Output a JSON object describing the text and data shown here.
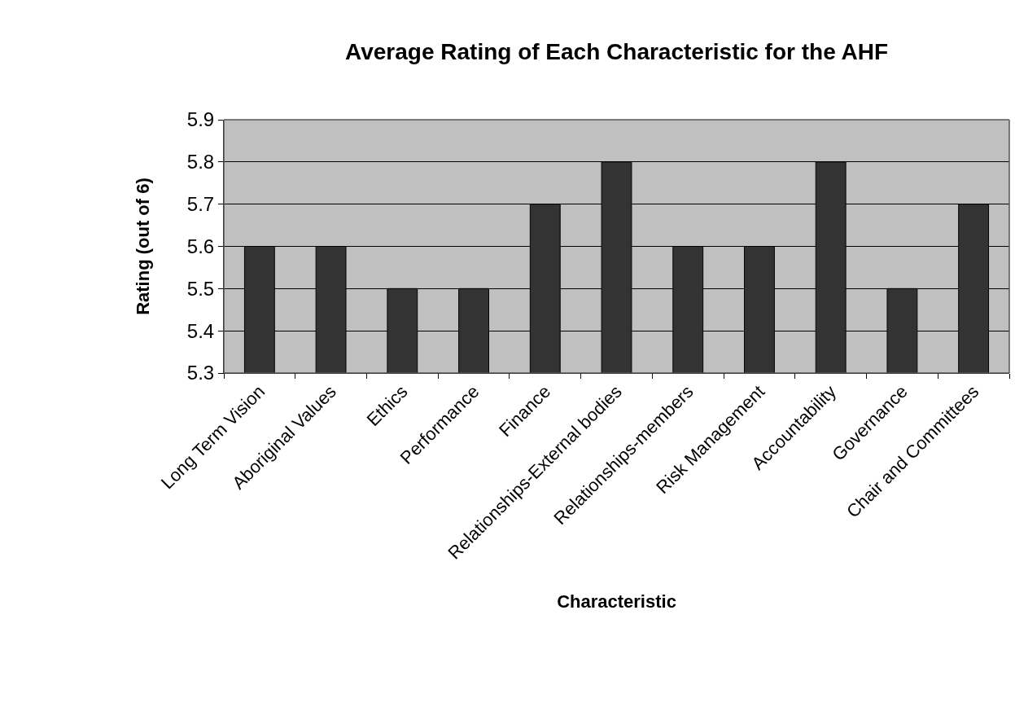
{
  "chart_data": {
    "type": "bar",
    "title": "Average Rating of Each Characteristic for the AHF",
    "xlabel": "Characteristic",
    "ylabel": "Rating (out of 6)",
    "categories": [
      "Long Term Vision",
      "Aboriginal Values",
      "Ethics",
      "Performance",
      "Finance",
      "Relationships-External bodies",
      "Relationships-members",
      "Risk Management",
      "Accountability",
      "Governance",
      "Chair and Committees"
    ],
    "values": [
      5.6,
      5.6,
      5.5,
      5.5,
      5.7,
      5.8,
      5.6,
      5.6,
      5.8,
      5.5,
      5.7
    ],
    "color": "#333333",
    "ylim": [
      5.3,
      5.9
    ],
    "yticks": [
      5.3,
      5.4,
      5.5,
      5.6,
      5.7,
      5.8,
      5.9
    ],
    "grid": "y"
  }
}
